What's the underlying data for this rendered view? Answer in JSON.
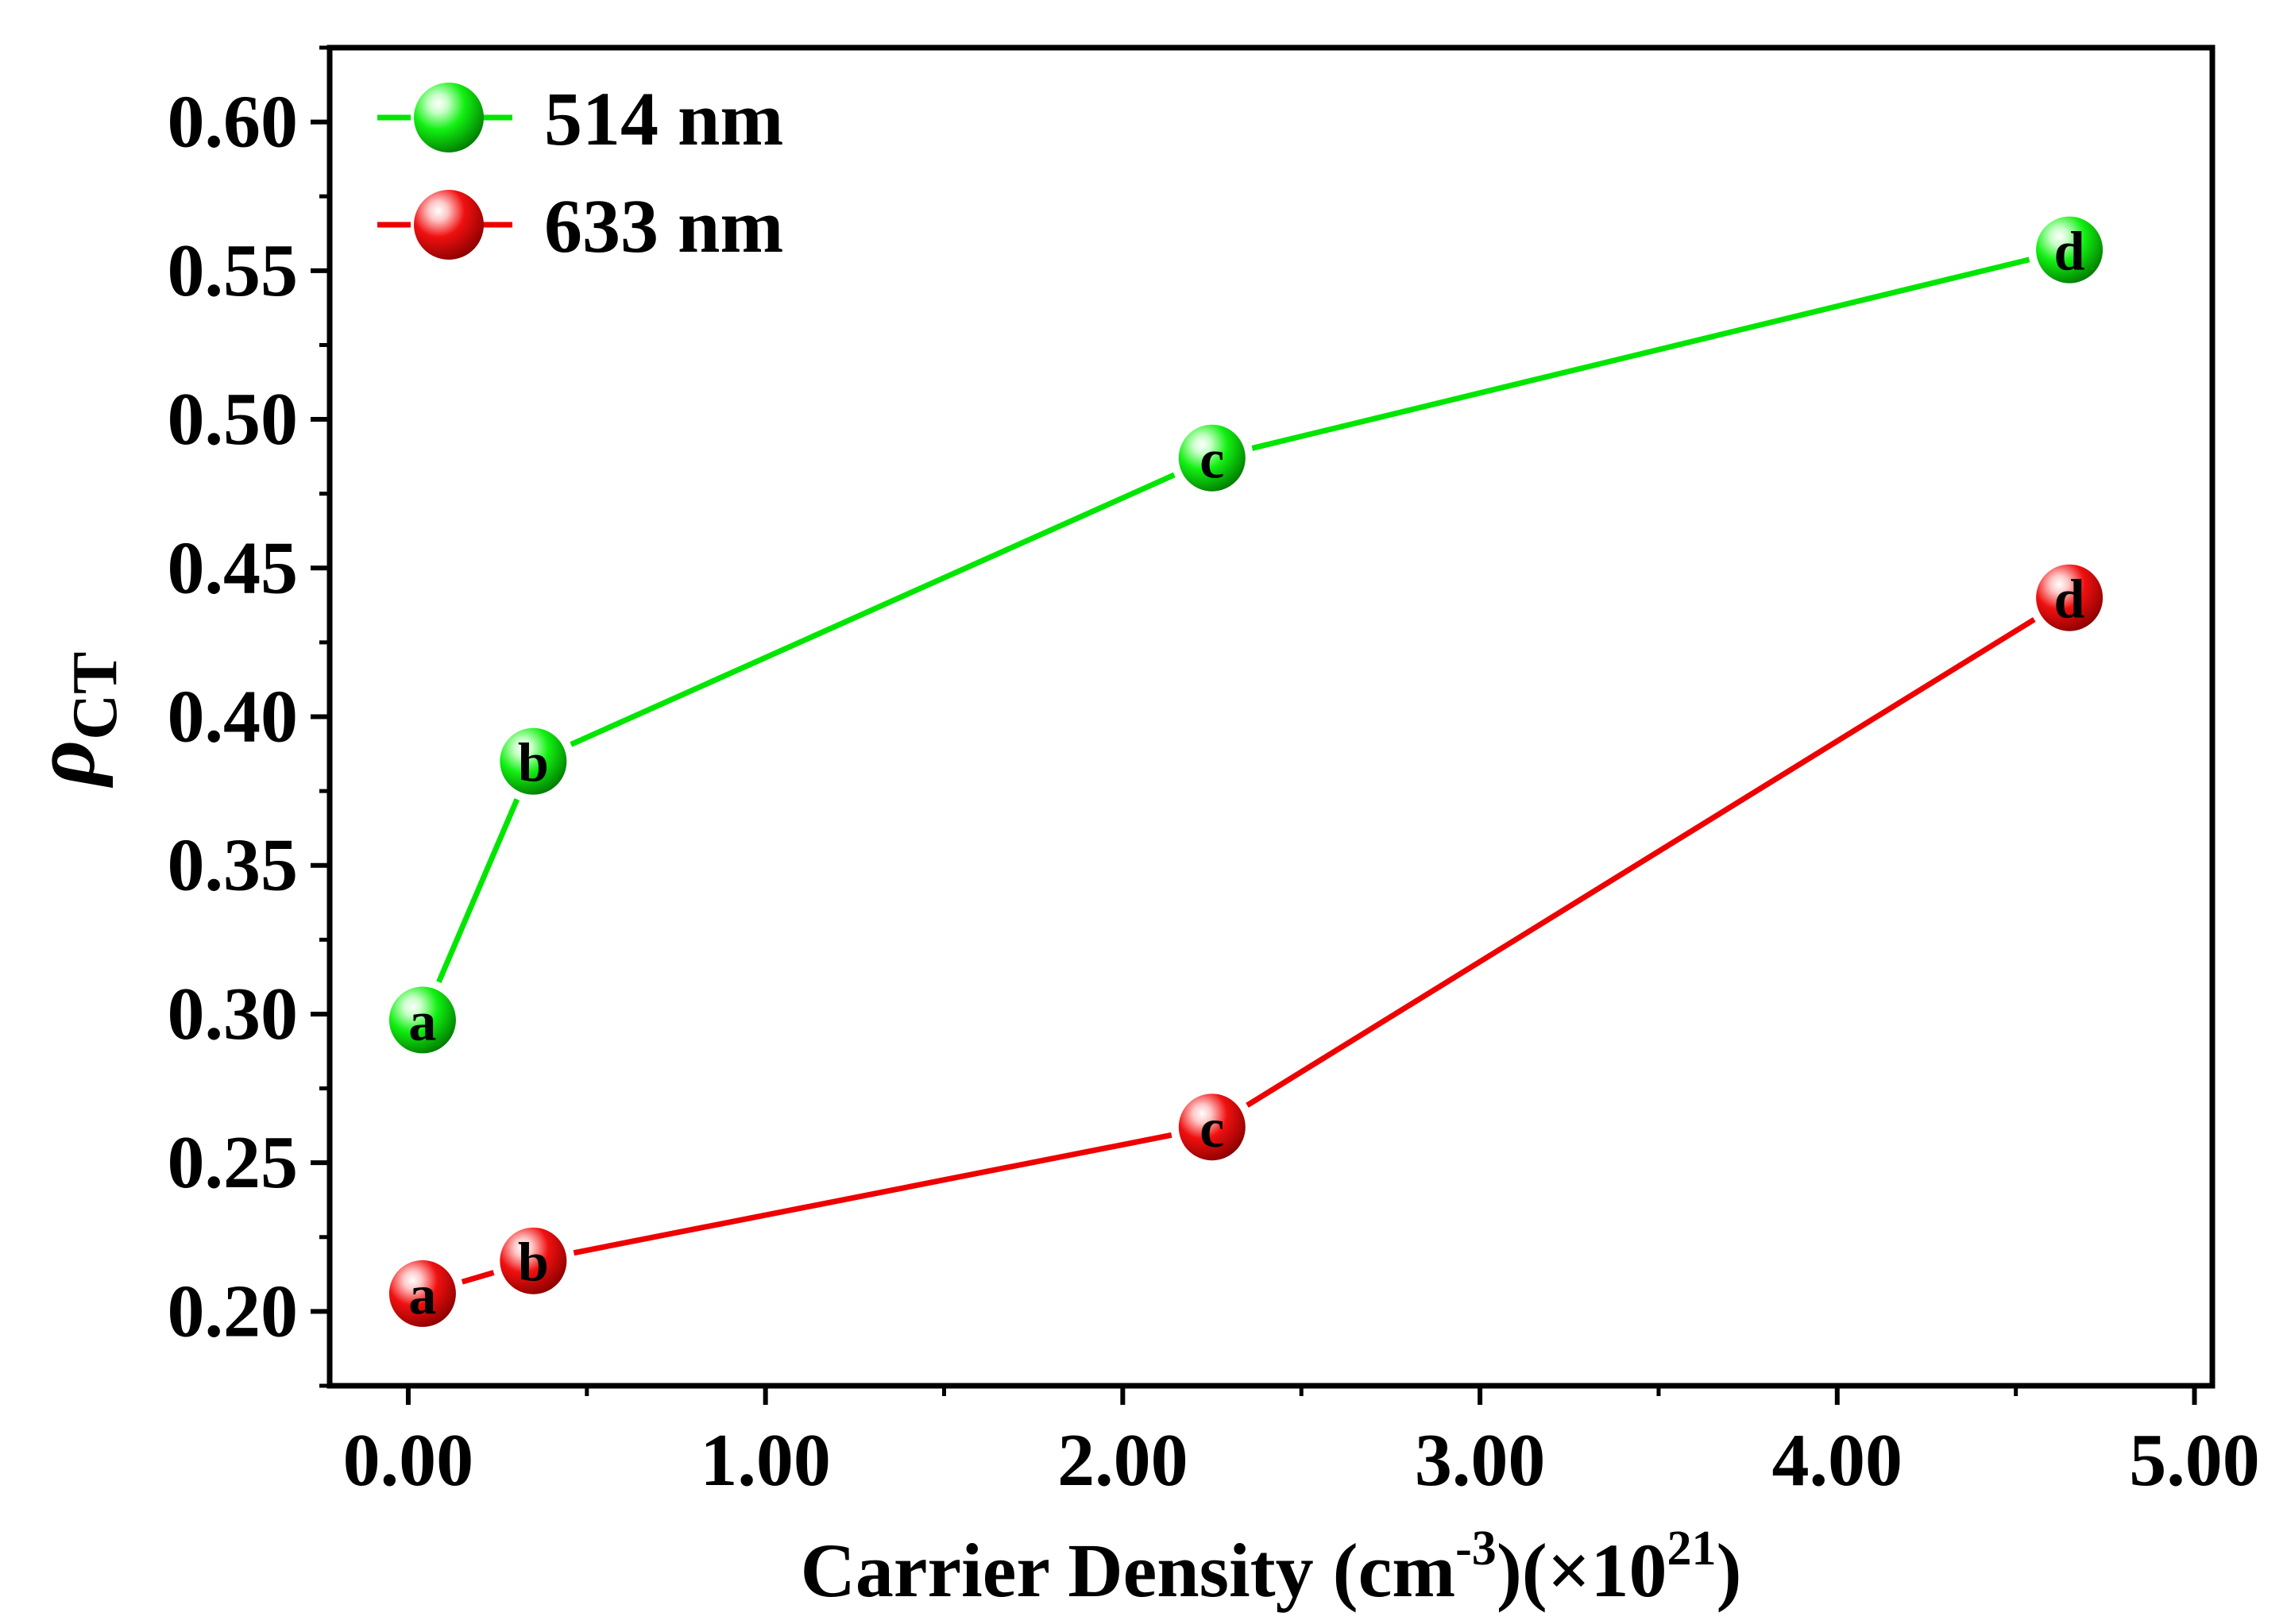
{
  "chart_data": {
    "type": "line",
    "xlabel": "Carrier Density (cm",
    "xlabel_sup1": "-3",
    "xlabel_mid": ")(×10",
    "xlabel_sup2": "21",
    "xlabel_end": ")",
    "ylabel": "ρ",
    "ylabel_sub": "CT",
    "xlim": [
      -0.22,
      5.05
    ],
    "ylim": [
      0.175,
      0.625
    ],
    "x_ticks": [
      0.0,
      1.0,
      2.0,
      3.0,
      4.0,
      5.0
    ],
    "x_tick_labels": [
      "0.00",
      "1.00",
      "2.00",
      "3.00",
      "4.00",
      "5.00"
    ],
    "y_ticks": [
      0.2,
      0.25,
      0.3,
      0.35,
      0.4,
      0.45,
      0.5,
      0.55,
      0.6
    ],
    "y_tick_labels": [
      "0.20",
      "0.25",
      "0.30",
      "0.35",
      "0.40",
      "0.45",
      "0.50",
      "0.55",
      "0.60"
    ],
    "grid": false,
    "legend_position": "top-left",
    "series": [
      {
        "name": "514 nm",
        "color": "#00e600",
        "x": [
          0.04,
          0.35,
          2.25,
          4.65
        ],
        "y": [
          0.298,
          0.385,
          0.487,
          0.557
        ],
        "point_labels": [
          "a",
          "b",
          "c",
          "d"
        ]
      },
      {
        "name": "633 nm",
        "color": "#ee0000",
        "x": [
          0.04,
          0.35,
          2.25,
          4.65
        ],
        "y": [
          0.206,
          0.217,
          0.262,
          0.44
        ],
        "point_labels": [
          "a",
          "b",
          "c",
          "d"
        ]
      }
    ]
  }
}
